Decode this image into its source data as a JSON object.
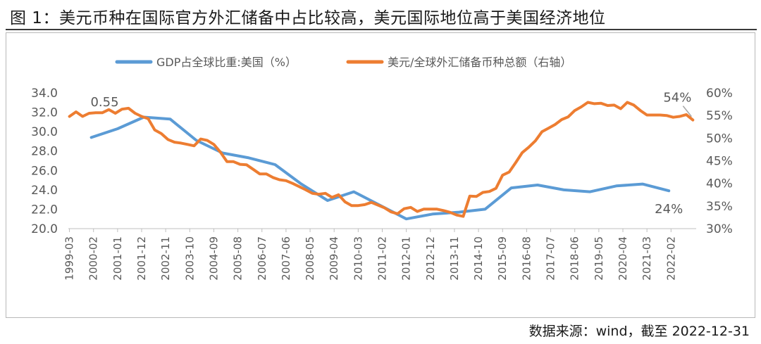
{
  "title": "图 1：美元币种在国际官方外汇储备中占比较高，美元国际地位高于美国经济地位",
  "source": "数据来源：wind，截至 2022-12-31",
  "chart_data": {
    "type": "line",
    "x_tick_labels": [
      "1999-03",
      "2000-02",
      "2001-01",
      "2001-12",
      "2002-11",
      "2003-10",
      "2004-09",
      "2005-08",
      "2006-07",
      "2007-06",
      "2008-05",
      "2009-04",
      "2010-03",
      "2011-02",
      "2012-01",
      "2012-12",
      "2013-11",
      "2014-10",
      "2015-09",
      "2016-08",
      "2017-07",
      "2018-06",
      "2019-05",
      "2020-04",
      "2021-03",
      "2022-02"
    ],
    "y_left": {
      "min": 20,
      "max": 34,
      "step": 2,
      "tick_labels": [
        "20.0",
        "22.0",
        "24.0",
        "26.0",
        "28.0",
        "30.0",
        "32.0",
        "34.0"
      ]
    },
    "y_right": {
      "min": 30,
      "max": 60,
      "step": 5,
      "tick_labels": [
        "30%",
        "35%",
        "40%",
        "45%",
        "50%",
        "55%",
        "60%"
      ]
    },
    "series": [
      {
        "name": "GDP占全球比重:美国（%）",
        "axis": "left",
        "color": "#5B9BD5",
        "x": [
          "2000-01",
          "2001-01",
          "2002-01",
          "2003-01",
          "2004-01",
          "2005-01",
          "2006-01",
          "2007-01",
          "2008-01",
          "2009-01",
          "2010-01",
          "2011-01",
          "2012-01",
          "2013-01",
          "2014-01",
          "2015-01",
          "2016-01",
          "2017-01",
          "2018-01",
          "2019-01",
          "2020-01",
          "2021-01",
          "2022-01"
        ],
        "values": [
          29.4,
          30.3,
          31.5,
          31.3,
          29.1,
          27.8,
          27.3,
          26.6,
          24.6,
          22.9,
          23.8,
          22.4,
          21.0,
          21.5,
          21.7,
          22.0,
          24.2,
          24.5,
          24.0,
          23.8,
          24.4,
          24.6,
          23.9
        ]
      },
      {
        "name": "美元/全球外汇储备币种总额（右轴）",
        "axis": "right",
        "color": "#ED7D31",
        "x": [
          "1999-03",
          "1999-06",
          "1999-09",
          "1999-12",
          "2000-03",
          "2000-06",
          "2000-09",
          "2000-12",
          "2001-03",
          "2001-06",
          "2001-09",
          "2001-12",
          "2002-03",
          "2002-06",
          "2002-09",
          "2002-12",
          "2003-03",
          "2003-06",
          "2003-09",
          "2003-12",
          "2004-03",
          "2004-06",
          "2004-09",
          "2004-12",
          "2005-03",
          "2005-06",
          "2005-09",
          "2005-12",
          "2006-03",
          "2006-06",
          "2006-09",
          "2006-12",
          "2007-03",
          "2007-06",
          "2007-09",
          "2007-12",
          "2008-03",
          "2008-06",
          "2008-09",
          "2008-12",
          "2009-03",
          "2009-06",
          "2009-09",
          "2009-12",
          "2010-03",
          "2010-06",
          "2010-09",
          "2010-12",
          "2011-03",
          "2011-06",
          "2011-09",
          "2011-12",
          "2012-03",
          "2012-06",
          "2012-09",
          "2012-12",
          "2013-03",
          "2013-06",
          "2013-09",
          "2013-12",
          "2014-03",
          "2014-06",
          "2014-09",
          "2014-12",
          "2015-03",
          "2015-06",
          "2015-09",
          "2015-12",
          "2016-03",
          "2016-06",
          "2016-09",
          "2016-12",
          "2017-03",
          "2017-06",
          "2017-09",
          "2017-12",
          "2018-03",
          "2018-06",
          "2018-09",
          "2018-12",
          "2019-03",
          "2019-06",
          "2019-09",
          "2019-12",
          "2020-03",
          "2020-06",
          "2020-09",
          "2020-12",
          "2021-03",
          "2021-06",
          "2021-09",
          "2021-12",
          "2022-03",
          "2022-06",
          "2022-09",
          "2022-12"
        ],
        "values": [
          54.8,
          55.8,
          54.8,
          55.5,
          55.6,
          55.6,
          56.3,
          55.5,
          56.4,
          56.6,
          55.5,
          54.8,
          54.3,
          51.8,
          51.0,
          49.7,
          49.1,
          48.9,
          48.6,
          48.3,
          49.8,
          49.5,
          48.6,
          46.9,
          44.8,
          44.8,
          44.2,
          44.1,
          43.1,
          42.1,
          42.1,
          41.3,
          40.8,
          40.6,
          40.0,
          39.3,
          38.6,
          37.8,
          37.6,
          37.8,
          36.9,
          37.5,
          35.9,
          35.1,
          35.1,
          35.3,
          35.8,
          35.2,
          34.6,
          33.7,
          33.3,
          34.4,
          34.7,
          33.8,
          34.3,
          34.3,
          34.3,
          34.0,
          33.6,
          33.0,
          32.7,
          37.2,
          37.1,
          38.0,
          38.2,
          38.9,
          41.8,
          42.5,
          44.6,
          46.8,
          48.0,
          49.4,
          51.4,
          52.2,
          53.0,
          54.1,
          54.7,
          56.1,
          56.9,
          57.9,
          57.6,
          57.7,
          57.2,
          57.3,
          56.5,
          57.9,
          57.3,
          56.1,
          55.1,
          55.1,
          55.1,
          55.0,
          54.6,
          54.8,
          55.2,
          54.0
        ]
      }
    ],
    "annotations": [
      {
        "text": "0.55",
        "series": 1,
        "at": "1999-12"
      },
      {
        "text": "54%",
        "series": 1,
        "at": "2022-12"
      },
      {
        "text": "24%",
        "series": 0,
        "at": "2022-01"
      }
    ],
    "legend_position": "top",
    "grid": false
  }
}
